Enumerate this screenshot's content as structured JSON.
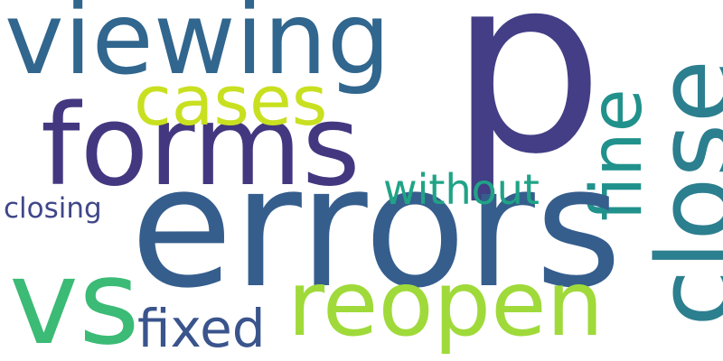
{
  "words": [
    {
      "id": "viewing",
      "text": "viewing",
      "color": "#31668e"
    },
    {
      "id": "p",
      "text": "p",
      "color": "#433e85"
    },
    {
      "id": "cases",
      "text": "cases",
      "color": "#c8e020"
    },
    {
      "id": "forms",
      "text": "forms",
      "color": "#433880"
    },
    {
      "id": "fine",
      "text": "fine",
      "color": "#21918c"
    },
    {
      "id": "close",
      "text": "close",
      "color": "#2c7f8e"
    },
    {
      "id": "without",
      "text": "without",
      "color": "#20a386"
    },
    {
      "id": "closing",
      "text": "closing",
      "color": "#3f4789"
    },
    {
      "id": "errors",
      "text": "errors",
      "color": "#355e8d"
    },
    {
      "id": "vs",
      "text": "vs",
      "color": "#3bbb75"
    },
    {
      "id": "reopen",
      "text": "reopen",
      "color": "#9fda3a"
    },
    {
      "id": "fixed",
      "text": "fixed",
      "color": "#3a548c"
    }
  ]
}
